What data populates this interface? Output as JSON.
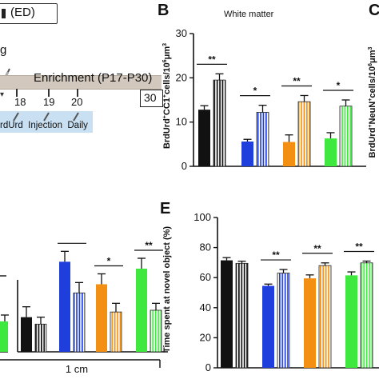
{
  "top_left": {
    "legend_box_label": "(ED)",
    "prefix_fragment": "g",
    "timeline_label": "Enrichment (P17-P30)",
    "day_ticks": [
      "18",
      "19",
      "20"
    ],
    "end_day": "30",
    "injection_label": "rdUrd  Injection  Daily",
    "colors": {
      "timeline_bar": "#d3c8bd",
      "injection_box": "#c9dff2"
    }
  },
  "bottom_left": {
    "scale_label": "1 cm",
    "sig_marks": [
      "*",
      "*",
      "**"
    ]
  },
  "panel_b": {
    "letter": "B",
    "title": "White matter",
    "ylabel_parts": [
      "BrdUrd",
      "+",
      "CC1",
      "+",
      "cells/10",
      "6",
      "μm",
      "3"
    ],
    "sig_marks": [
      "**",
      "*",
      "**",
      "*"
    ]
  },
  "panel_c": {
    "letter": "C",
    "ylabel_parts": [
      "BrdUrd",
      "+",
      "NeuN",
      "+",
      "cells/10",
      "6",
      "μm",
      "3"
    ]
  },
  "panel_e": {
    "letter": "E",
    "ylabel_parts": [
      "Time spent at novel object (%)"
    ],
    "sig_marks": [
      "**",
      "**",
      "**"
    ]
  },
  "chart_data": [
    {
      "type": "bar",
      "title": "White matter",
      "ylabel": "BrdUrd+CC1+cells/10^6μm^3",
      "ylim": [
        0,
        30
      ],
      "yticks": [
        0,
        10,
        20,
        30
      ],
      "grid": false,
      "groups": [
        {
          "color": "#111111",
          "values": [
            12.8,
            19.5
          ],
          "errors": [
            0.9,
            1.4
          ]
        },
        {
          "color": "#1f3fdc",
          "values": [
            5.6,
            12.2
          ],
          "errors": [
            0.5,
            1.6
          ]
        },
        {
          "color": "#f39013",
          "values": [
            5.5,
            14.6
          ],
          "errors": [
            1.6,
            1.4
          ]
        },
        {
          "color": "#3ee83e",
          "values": [
            6.3,
            13.6
          ],
          "errors": [
            1.3,
            1.4
          ]
        }
      ]
    },
    {
      "type": "bar",
      "ylabel": "Time spent at novel object (%)",
      "ylim": [
        0,
        100
      ],
      "yticks": [
        0,
        20,
        40,
        60,
        80,
        100
      ],
      "grid": false,
      "groups": [
        {
          "color": "#111111",
          "values": [
            71.5,
            69.5
          ],
          "errors": [
            1.8,
            1.4
          ]
        },
        {
          "color": "#1f3fdc",
          "values": [
            54.5,
            63.0
          ],
          "errors": [
            1.2,
            2.4
          ]
        },
        {
          "color": "#f39013",
          "values": [
            59.5,
            68.0
          ],
          "errors": [
            2.3,
            1.8
          ]
        },
        {
          "color": "#3ee83e",
          "values": [
            61.5,
            69.8
          ],
          "errors": [
            2.3,
            1.2
          ]
        }
      ]
    },
    {
      "type": "bar",
      "partial": true,
      "groups": [
        {
          "color": "#111111",
          "values": [
            2.0,
            1.6
          ],
          "errors": [
            0.6,
            0.4
          ]
        },
        {
          "color": "#1f3fdc",
          "values": [
            5.2,
            3.4
          ],
          "errors": [
            0.6,
            0.6
          ]
        },
        {
          "color": "#f39013",
          "values": [
            3.9,
            2.3
          ],
          "errors": [
            0.6,
            0.5
          ]
        },
        {
          "color": "#3ee83e",
          "values": [
            4.8,
            2.4
          ],
          "errors": [
            0.6,
            0.4
          ]
        }
      ]
    }
  ]
}
